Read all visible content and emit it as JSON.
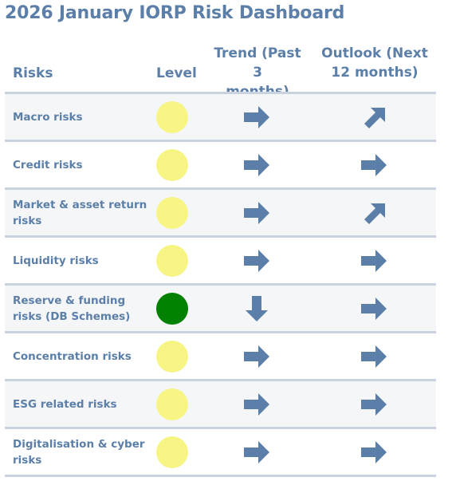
{
  "title": "2026 January IORP Risk Dashboard",
  "headers": {
    "risks": "Risks",
    "level": "Level",
    "trend_line1": "Trend (Past 3",
    "trend_line2": "months)",
    "outlook_line1": "Outlook (Next",
    "outlook_line2": "12 months)"
  },
  "colors": {
    "yellow": "#f9f584",
    "green": "#028102",
    "arrow": "#5b7fa8"
  },
  "rows": [
    {
      "line1": "Macro risks",
      "line2": "",
      "level": "yellow",
      "trend": "right-arrow-icon",
      "outlook": "up-right-arrow-icon"
    },
    {
      "line1": "Credit risks",
      "line2": "",
      "level": "yellow",
      "trend": "right-arrow-icon",
      "outlook": "right-arrow-icon"
    },
    {
      "line1": "Market & asset return",
      "line2": "risks",
      "level": "yellow",
      "trend": "right-arrow-icon",
      "outlook": "up-right-arrow-icon"
    },
    {
      "line1": "Liquidity risks",
      "line2": "",
      "level": "yellow",
      "trend": "right-arrow-icon",
      "outlook": "right-arrow-icon"
    },
    {
      "line1": "Reserve & funding",
      "line2": "risks (DB Schemes)",
      "level": "green",
      "trend": "down-arrow-icon",
      "outlook": "right-arrow-icon"
    },
    {
      "line1": "Concentration risks",
      "line2": "",
      "level": "yellow",
      "trend": "right-arrow-icon",
      "outlook": "right-arrow-icon"
    },
    {
      "line1": "ESG related risks",
      "line2": "",
      "level": "yellow",
      "trend": "right-arrow-icon",
      "outlook": "right-arrow-icon"
    },
    {
      "line1": "Digitalisation & cyber",
      "line2": "risks",
      "level": "yellow",
      "trend": "right-arrow-icon",
      "outlook": "right-arrow-icon"
    }
  ]
}
